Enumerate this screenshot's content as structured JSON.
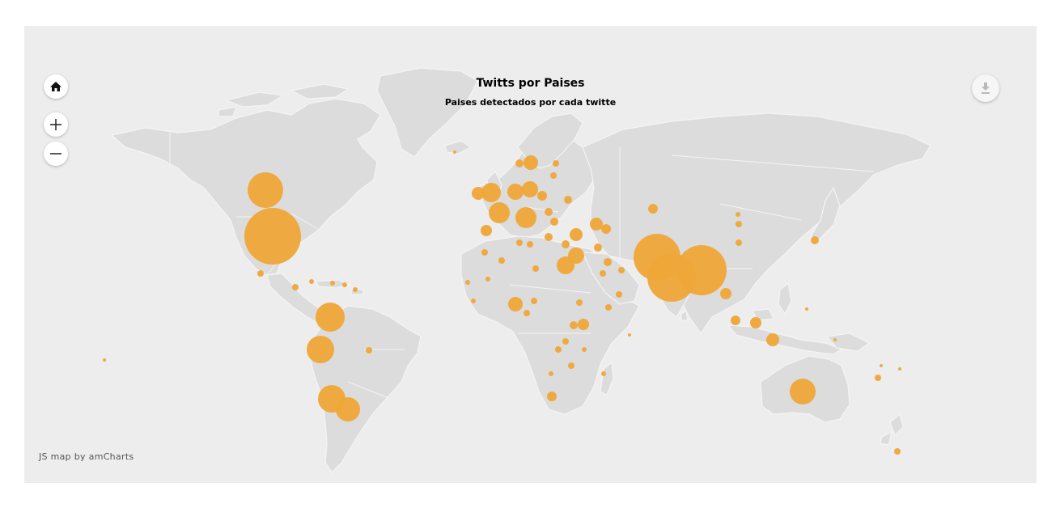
{
  "map": {
    "title": "Twitts por Paises",
    "subtitle": "Paises detectados por cada twitte",
    "credit": "JS map by amCharts",
    "bubble_color": "#eea638",
    "land_color": "#dcdcdc",
    "background_color": "#ededed",
    "controls": {
      "home_icon": "home-icon",
      "zoom_in_icon": "plus-icon",
      "zoom_out_icon": "minus-icon",
      "export_icon": "download-icon"
    }
  }
}
